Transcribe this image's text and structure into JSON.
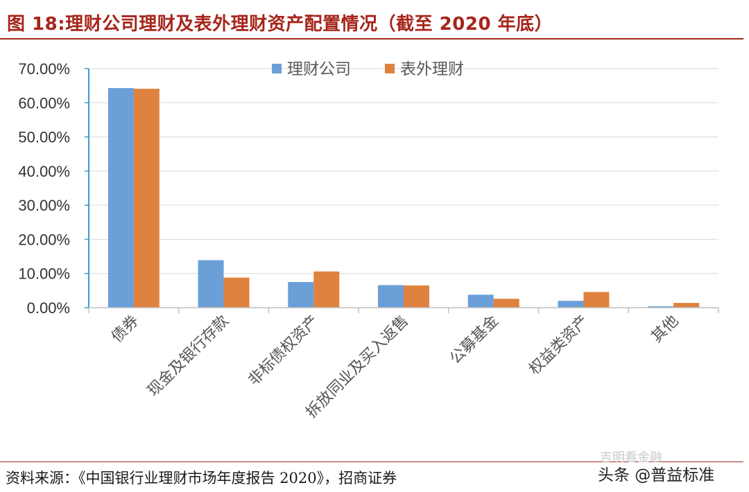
{
  "figure_title": "图 18:理财公司理财及表外理财资产配置情况（截至 2020 年底）",
  "source_note": "资料来源：《中国银行业理财市场年度报告 2020》，招商证券",
  "watermarks": {
    "wechat": "吉明看金融",
    "toutiao": "头条 @普益标准"
  },
  "colors": {
    "title": "#a6251b",
    "series_1": "#6a9fd8",
    "series_2": "#e0823f",
    "axis": "#3e9ad6",
    "grid": "#d9d9d9"
  },
  "chart_data": {
    "type": "bar",
    "title": "",
    "xlabel": "",
    "ylabel": "",
    "categories": [
      "债券",
      "现金及银行存款",
      "非标债权资产",
      "拆放同业及买入返售",
      "公募基金",
      "权益类资产",
      "其他"
    ],
    "series": [
      {
        "name": "理财公司",
        "values": [
          64.3,
          13.9,
          7.5,
          6.6,
          3.8,
          2.0,
          0.4
        ]
      },
      {
        "name": "表外理财",
        "values": [
          64.1,
          8.8,
          10.6,
          6.5,
          2.6,
          4.6,
          1.4
        ]
      }
    ],
    "ylim": [
      0,
      70
    ],
    "yticks": [
      "0.00%",
      "10.00%",
      "20.00%",
      "30.00%",
      "40.00%",
      "50.00%",
      "60.00%",
      "70.00%"
    ],
    "grid": true,
    "legend_position": "top-center"
  }
}
